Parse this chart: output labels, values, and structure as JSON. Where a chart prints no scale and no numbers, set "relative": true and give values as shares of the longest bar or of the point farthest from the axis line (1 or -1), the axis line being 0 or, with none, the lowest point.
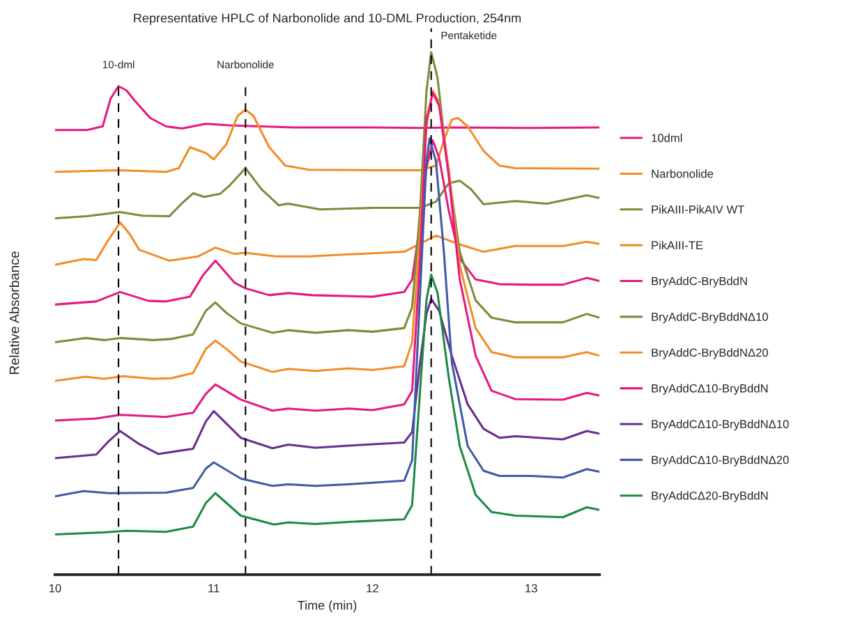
{
  "chart_data": {
    "type": "line",
    "relative": true,
    "title": "Representative HPLC of Narbonolide and 10-DML Production, 254nm",
    "xlabel": "Time (min)",
    "ylabel": "Relative Absorbance",
    "xlim": [
      10,
      13.43
    ],
    "xticks": [
      10,
      11,
      12,
      13
    ],
    "grid": false,
    "legend": "right",
    "ref_lines": [
      {
        "axis": "x",
        "value": 10.4,
        "label": "10-dml",
        "color": "#000000",
        "line_style": "dashed"
      },
      {
        "axis": "x",
        "value": 11.2,
        "label": "Narbonolide",
        "color": "#000000",
        "line_style": "dashed"
      },
      {
        "axis": "x",
        "value": 12.37,
        "label": "Pentaketide",
        "color": "#000000",
        "line_style": "dashed"
      }
    ],
    "series": [
      {
        "name": "10dml",
        "color": "#e6197f",
        "x": [
          10.0,
          10.2,
          10.3,
          10.35,
          10.4,
          10.45,
          10.5,
          10.6,
          10.7,
          10.8,
          10.95,
          11.1,
          11.3,
          11.5,
          12.0,
          12.3,
          12.5,
          13.0,
          13.43
        ],
        "values": [
          0.851,
          0.851,
          0.858,
          0.911,
          0.935,
          0.927,
          0.908,
          0.874,
          0.858,
          0.854,
          0.863,
          0.86,
          0.858,
          0.856,
          0.856,
          0.855,
          0.856,
          0.855,
          0.856
        ]
      },
      {
        "name": "Narbonolide",
        "color": "#f28c28",
        "x": [
          10.0,
          10.4,
          10.7,
          10.78,
          10.85,
          10.95,
          11.0,
          11.08,
          11.15,
          11.2,
          11.25,
          11.35,
          11.45,
          11.6,
          12.0,
          12.3,
          12.4,
          12.45,
          12.5,
          12.54,
          12.6,
          12.7,
          12.8,
          12.9,
          13.43
        ],
        "values": [
          0.771,
          0.774,
          0.771,
          0.778,
          0.818,
          0.807,
          0.795,
          0.824,
          0.878,
          0.89,
          0.878,
          0.818,
          0.783,
          0.775,
          0.774,
          0.774,
          0.783,
          0.831,
          0.871,
          0.874,
          0.858,
          0.811,
          0.783,
          0.778,
          0.777
        ]
      },
      {
        "name": "PikAIII-PikAIV WT",
        "color": "#7f8a3a",
        "x": [
          10.0,
          10.2,
          10.41,
          10.55,
          10.72,
          10.8,
          10.87,
          10.94,
          11.04,
          11.1,
          11.2,
          11.3,
          11.41,
          11.47,
          11.67,
          12.0,
          12.3,
          12.4,
          12.48,
          12.55,
          12.62,
          12.7,
          12.9,
          13.1,
          13.35,
          13.43
        ],
        "values": [
          0.682,
          0.686,
          0.694,
          0.687,
          0.686,
          0.711,
          0.73,
          0.723,
          0.729,
          0.745,
          0.778,
          0.738,
          0.707,
          0.71,
          0.699,
          0.702,
          0.702,
          0.714,
          0.749,
          0.754,
          0.738,
          0.709,
          0.715,
          0.71,
          0.726,
          0.721
        ]
      },
      {
        "name": "PikAIII-TE",
        "color": "#f28c28",
        "x": [
          10.0,
          10.18,
          10.26,
          10.33,
          10.41,
          10.47,
          10.53,
          10.72,
          10.9,
          11.01,
          11.13,
          11.2,
          11.39,
          11.6,
          11.85,
          12.2,
          12.4,
          12.55,
          12.7,
          12.9,
          13.2,
          13.35,
          13.43
        ],
        "values": [
          0.593,
          0.604,
          0.602,
          0.638,
          0.674,
          0.652,
          0.622,
          0.601,
          0.609,
          0.626,
          0.614,
          0.616,
          0.609,
          0.609,
          0.613,
          0.618,
          0.649,
          0.632,
          0.618,
          0.629,
          0.629,
          0.637,
          0.633
        ]
      },
      {
        "name": "BryAddC-BryBddN",
        "color": "#e6197f",
        "x": [
          10.0,
          10.26,
          10.41,
          10.59,
          10.7,
          10.85,
          10.93,
          11.01,
          11.13,
          11.2,
          11.35,
          11.47,
          11.62,
          12.0,
          12.2,
          12.25,
          12.3,
          12.34,
          12.38,
          12.42,
          12.48,
          12.55,
          12.65,
          12.8,
          13.0,
          13.2,
          13.35,
          13.43
        ],
        "values": [
          0.517,
          0.523,
          0.541,
          0.524,
          0.523,
          0.532,
          0.572,
          0.601,
          0.559,
          0.548,
          0.535,
          0.539,
          0.535,
          0.532,
          0.541,
          0.565,
          0.672,
          0.778,
          0.831,
          0.798,
          0.698,
          0.605,
          0.565,
          0.556,
          0.555,
          0.555,
          0.568,
          0.562
        ]
      },
      {
        "name": "BryAddC-BryBddNΔ10",
        "color": "#7f8a3a",
        "x": [
          10.0,
          10.19,
          10.31,
          10.41,
          10.62,
          10.73,
          10.87,
          10.95,
          11.01,
          11.08,
          11.17,
          11.37,
          11.47,
          11.64,
          11.85,
          12.0,
          12.2,
          12.25,
          12.3,
          12.34,
          12.37,
          12.41,
          12.47,
          12.55,
          12.65,
          12.75,
          12.9,
          13.2,
          13.35,
          13.43
        ],
        "values": [
          0.445,
          0.453,
          0.449,
          0.453,
          0.449,
          0.451,
          0.46,
          0.505,
          0.521,
          0.501,
          0.481,
          0.463,
          0.468,
          0.463,
          0.468,
          0.465,
          0.472,
          0.512,
          0.698,
          0.924,
          1.0,
          0.951,
          0.791,
          0.618,
          0.525,
          0.492,
          0.483,
          0.483,
          0.499,
          0.492
        ]
      },
      {
        "name": "BryAddC-BryBddNΔ20",
        "color": "#f28c28",
        "x": [
          10.0,
          10.19,
          10.31,
          10.43,
          10.62,
          10.73,
          10.87,
          10.95,
          11.01,
          11.08,
          11.17,
          11.37,
          11.47,
          11.64,
          11.85,
          12.0,
          12.2,
          12.25,
          12.3,
          12.34,
          12.38,
          12.42,
          12.48,
          12.55,
          12.65,
          12.75,
          12.9,
          13.2,
          13.35,
          13.43
        ],
        "values": [
          0.371,
          0.379,
          0.375,
          0.38,
          0.375,
          0.376,
          0.386,
          0.432,
          0.448,
          0.432,
          0.408,
          0.388,
          0.394,
          0.39,
          0.395,
          0.392,
          0.399,
          0.445,
          0.658,
          0.858,
          0.926,
          0.904,
          0.778,
          0.592,
          0.472,
          0.426,
          0.416,
          0.416,
          0.426,
          0.419
        ]
      },
      {
        "name": "BryAddCΔ10-BryBddN",
        "color": "#e6197f",
        "x": [
          10.0,
          10.26,
          10.41,
          10.7,
          10.87,
          10.95,
          11.01,
          11.17,
          11.37,
          11.47,
          11.64,
          11.85,
          12.0,
          12.2,
          12.25,
          12.3,
          12.34,
          12.38,
          12.42,
          12.48,
          12.55,
          12.65,
          12.75,
          12.9,
          13.2,
          13.35,
          13.43
        ],
        "values": [
          0.295,
          0.299,
          0.306,
          0.302,
          0.31,
          0.346,
          0.364,
          0.335,
          0.314,
          0.318,
          0.314,
          0.318,
          0.315,
          0.326,
          0.352,
          0.605,
          0.871,
          0.922,
          0.898,
          0.765,
          0.565,
          0.419,
          0.352,
          0.336,
          0.335,
          0.348,
          0.343
        ]
      },
      {
        "name": "BryAddCΔ10-BryBddNΔ10",
        "color": "#6a2c8f",
        "x": [
          10.0,
          10.26,
          10.33,
          10.41,
          10.53,
          10.65,
          10.87,
          10.95,
          11.0,
          11.17,
          11.37,
          11.47,
          11.64,
          11.85,
          12.2,
          12.25,
          12.3,
          12.34,
          12.37,
          12.42,
          12.5,
          12.6,
          12.7,
          12.8,
          12.9,
          13.2,
          13.35,
          13.43
        ],
        "values": [
          0.223,
          0.23,
          0.253,
          0.275,
          0.25,
          0.231,
          0.241,
          0.293,
          0.313,
          0.262,
          0.242,
          0.249,
          0.243,
          0.247,
          0.253,
          0.273,
          0.406,
          0.499,
          0.528,
          0.505,
          0.419,
          0.326,
          0.279,
          0.262,
          0.265,
          0.259,
          0.275,
          0.27
        ]
      },
      {
        "name": "BryAddCΔ10-BryBddNΔ20",
        "color": "#3f5aa8",
        "x": [
          10.0,
          10.18,
          10.34,
          10.7,
          10.87,
          10.95,
          11.0,
          11.17,
          11.37,
          11.47,
          11.64,
          11.85,
          12.2,
          12.25,
          12.3,
          12.34,
          12.36,
          12.4,
          12.45,
          12.5,
          12.6,
          12.7,
          12.8,
          13.0,
          13.2,
          13.35,
          13.43
        ],
        "values": [
          0.15,
          0.16,
          0.156,
          0.157,
          0.166,
          0.203,
          0.215,
          0.184,
          0.17,
          0.173,
          0.17,
          0.173,
          0.18,
          0.219,
          0.539,
          0.791,
          0.835,
          0.791,
          0.618,
          0.406,
          0.246,
          0.199,
          0.189,
          0.189,
          0.186,
          0.202,
          0.197
        ]
      },
      {
        "name": "BryAddCΔ20-BryBddN",
        "color": "#1e8a43",
        "x": [
          10.0,
          10.31,
          10.45,
          10.7,
          10.87,
          10.95,
          11.01,
          11.17,
          11.38,
          11.47,
          11.64,
          11.85,
          12.2,
          12.25,
          12.3,
          12.34,
          12.37,
          12.41,
          12.48,
          12.55,
          12.65,
          12.75,
          12.9,
          13.2,
          13.35,
          13.43
        ],
        "values": [
          0.077,
          0.081,
          0.084,
          0.082,
          0.092,
          0.137,
          0.156,
          0.113,
          0.096,
          0.1,
          0.097,
          0.101,
          0.106,
          0.133,
          0.352,
          0.525,
          0.574,
          0.539,
          0.379,
          0.246,
          0.153,
          0.12,
          0.113,
          0.11,
          0.129,
          0.124
        ]
      }
    ]
  }
}
